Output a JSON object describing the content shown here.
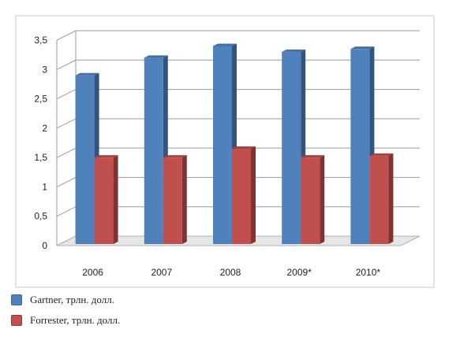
{
  "chart_data": {
    "type": "bar",
    "categories": [
      "2006",
      "2007",
      "2008",
      "2009*",
      "2010*"
    ],
    "series": [
      {
        "name": "Gartner, трлн. долл.",
        "values": [
          2.9,
          3.2,
          3.4,
          3.3,
          3.35
        ],
        "color": "#4f81bd"
      },
      {
        "name": "Forrester, трлн. долл.",
        "values": [
          1.5,
          1.5,
          1.65,
          1.5,
          1.53
        ],
        "color": "#c0504d"
      }
    ],
    "ylim": [
      0,
      3.5
    ],
    "yticks": [
      "0",
      "0,5",
      "1",
      "1,5",
      "2",
      "2,5",
      "3",
      "3,5"
    ],
    "grid": true,
    "three_d": true,
    "legend_position": "bottom-left",
    "title": "",
    "xlabel": "",
    "ylabel": ""
  }
}
